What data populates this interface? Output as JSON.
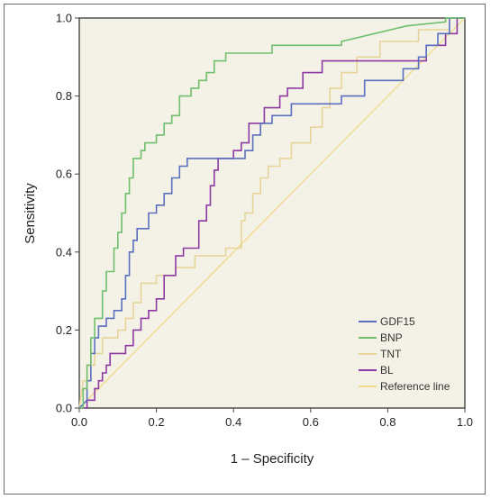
{
  "chart_data": {
    "type": "line",
    "title": "",
    "xlabel": "1 – Specificity",
    "ylabel": "Sensitivity",
    "xlim": [
      0,
      1
    ],
    "ylim": [
      0,
      1
    ],
    "xticks": [
      "0.0",
      "0.2",
      "0.4",
      "0.6",
      "0.8",
      "1.0"
    ],
    "yticks": [
      "0.0",
      "0.2",
      "0.4",
      "0.6",
      "0.8",
      "1.0"
    ],
    "grid": false,
    "legend_position": "lower-right",
    "background": "#f4f2e6",
    "series": [
      {
        "name": "GDF15",
        "color": "#5b6fc0",
        "points": [
          [
            0,
            0
          ],
          [
            0.02,
            0.02
          ],
          [
            0.02,
            0.07
          ],
          [
            0.03,
            0.07
          ],
          [
            0.03,
            0.14
          ],
          [
            0.04,
            0.14
          ],
          [
            0.04,
            0.18
          ],
          [
            0.05,
            0.18
          ],
          [
            0.05,
            0.21
          ],
          [
            0.07,
            0.21
          ],
          [
            0.07,
            0.23
          ],
          [
            0.09,
            0.23
          ],
          [
            0.09,
            0.25
          ],
          [
            0.11,
            0.25
          ],
          [
            0.11,
            0.28
          ],
          [
            0.12,
            0.28
          ],
          [
            0.12,
            0.34
          ],
          [
            0.13,
            0.34
          ],
          [
            0.13,
            0.4
          ],
          [
            0.14,
            0.4
          ],
          [
            0.14,
            0.43
          ],
          [
            0.15,
            0.43
          ],
          [
            0.15,
            0.46
          ],
          [
            0.18,
            0.46
          ],
          [
            0.18,
            0.5
          ],
          [
            0.2,
            0.5
          ],
          [
            0.2,
            0.52
          ],
          [
            0.22,
            0.52
          ],
          [
            0.22,
            0.55
          ],
          [
            0.24,
            0.55
          ],
          [
            0.24,
            0.59
          ],
          [
            0.26,
            0.59
          ],
          [
            0.26,
            0.62
          ],
          [
            0.28,
            0.62
          ],
          [
            0.28,
            0.64
          ],
          [
            0.43,
            0.64
          ],
          [
            0.43,
            0.66
          ],
          [
            0.45,
            0.66
          ],
          [
            0.45,
            0.7
          ],
          [
            0.47,
            0.7
          ],
          [
            0.47,
            0.73
          ],
          [
            0.5,
            0.73
          ],
          [
            0.5,
            0.75
          ],
          [
            0.55,
            0.75
          ],
          [
            0.55,
            0.78
          ],
          [
            0.68,
            0.78
          ],
          [
            0.68,
            0.8
          ],
          [
            0.74,
            0.8
          ],
          [
            0.74,
            0.84
          ],
          [
            0.84,
            0.84
          ],
          [
            0.84,
            0.87
          ],
          [
            0.88,
            0.87
          ],
          [
            0.88,
            0.9
          ],
          [
            0.9,
            0.9
          ],
          [
            0.9,
            0.93
          ],
          [
            0.93,
            0.93
          ],
          [
            0.93,
            0.96
          ],
          [
            0.96,
            0.96
          ],
          [
            0.96,
            1.0
          ],
          [
            1.0,
            1.0
          ]
        ]
      },
      {
        "name": "BNP",
        "color": "#6fbf6f",
        "points": [
          [
            0,
            0
          ],
          [
            0.01,
            0.0
          ],
          [
            0.01,
            0.05
          ],
          [
            0.02,
            0.05
          ],
          [
            0.02,
            0.11
          ],
          [
            0.03,
            0.11
          ],
          [
            0.03,
            0.18
          ],
          [
            0.04,
            0.18
          ],
          [
            0.04,
            0.23
          ],
          [
            0.06,
            0.23
          ],
          [
            0.06,
            0.3
          ],
          [
            0.07,
            0.3
          ],
          [
            0.07,
            0.35
          ],
          [
            0.09,
            0.35
          ],
          [
            0.09,
            0.41
          ],
          [
            0.1,
            0.41
          ],
          [
            0.1,
            0.45
          ],
          [
            0.11,
            0.45
          ],
          [
            0.11,
            0.5
          ],
          [
            0.12,
            0.5
          ],
          [
            0.12,
            0.55
          ],
          [
            0.13,
            0.55
          ],
          [
            0.13,
            0.59
          ],
          [
            0.14,
            0.59
          ],
          [
            0.14,
            0.64
          ],
          [
            0.16,
            0.64
          ],
          [
            0.16,
            0.66
          ],
          [
            0.17,
            0.66
          ],
          [
            0.17,
            0.68
          ],
          [
            0.2,
            0.68
          ],
          [
            0.2,
            0.7
          ],
          [
            0.22,
            0.7
          ],
          [
            0.22,
            0.73
          ],
          [
            0.24,
            0.73
          ],
          [
            0.24,
            0.75
          ],
          [
            0.26,
            0.75
          ],
          [
            0.26,
            0.8
          ],
          [
            0.29,
            0.8
          ],
          [
            0.29,
            0.82
          ],
          [
            0.31,
            0.82
          ],
          [
            0.31,
            0.84
          ],
          [
            0.33,
            0.84
          ],
          [
            0.33,
            0.86
          ],
          [
            0.35,
            0.86
          ],
          [
            0.35,
            0.89
          ],
          [
            0.38,
            0.89
          ],
          [
            0.38,
            0.91
          ],
          [
            0.5,
            0.91
          ],
          [
            0.5,
            0.93
          ],
          [
            0.68,
            0.93
          ],
          [
            0.68,
            0.94
          ],
          [
            0.85,
            0.98
          ],
          [
            0.95,
            0.99
          ],
          [
            0.95,
            1.0
          ],
          [
            1.0,
            1.0
          ]
        ]
      },
      {
        "name": "TNT",
        "color": "#e8d49a",
        "points": [
          [
            0,
            0
          ],
          [
            0.01,
            0.07
          ],
          [
            0.02,
            0.07
          ],
          [
            0.02,
            0.11
          ],
          [
            0.04,
            0.11
          ],
          [
            0.04,
            0.14
          ],
          [
            0.06,
            0.14
          ],
          [
            0.06,
            0.18
          ],
          [
            0.1,
            0.18
          ],
          [
            0.1,
            0.2
          ],
          [
            0.12,
            0.2
          ],
          [
            0.12,
            0.23
          ],
          [
            0.14,
            0.23
          ],
          [
            0.14,
            0.27
          ],
          [
            0.16,
            0.27
          ],
          [
            0.16,
            0.32
          ],
          [
            0.2,
            0.32
          ],
          [
            0.2,
            0.34
          ],
          [
            0.25,
            0.34
          ],
          [
            0.25,
            0.36
          ],
          [
            0.3,
            0.36
          ],
          [
            0.3,
            0.39
          ],
          [
            0.38,
            0.39
          ],
          [
            0.38,
            0.41
          ],
          [
            0.42,
            0.41
          ],
          [
            0.42,
            0.48
          ],
          [
            0.43,
            0.48
          ],
          [
            0.43,
            0.5
          ],
          [
            0.45,
            0.5
          ],
          [
            0.45,
            0.55
          ],
          [
            0.47,
            0.55
          ],
          [
            0.47,
            0.59
          ],
          [
            0.49,
            0.59
          ],
          [
            0.49,
            0.62
          ],
          [
            0.52,
            0.62
          ],
          [
            0.52,
            0.64
          ],
          [
            0.55,
            0.64
          ],
          [
            0.55,
            0.68
          ],
          [
            0.6,
            0.68
          ],
          [
            0.6,
            0.72
          ],
          [
            0.63,
            0.72
          ],
          [
            0.63,
            0.77
          ],
          [
            0.65,
            0.77
          ],
          [
            0.65,
            0.82
          ],
          [
            0.68,
            0.82
          ],
          [
            0.68,
            0.86
          ],
          [
            0.72,
            0.86
          ],
          [
            0.72,
            0.9
          ],
          [
            0.78,
            0.9
          ],
          [
            0.78,
            0.94
          ],
          [
            0.88,
            0.94
          ],
          [
            0.88,
            0.97
          ],
          [
            0.96,
            0.97
          ],
          [
            0.96,
            1.0
          ],
          [
            1.0,
            1.0
          ]
        ]
      },
      {
        "name": "BL",
        "color": "#8e3aa3",
        "points": [
          [
            0,
            0
          ],
          [
            0.02,
            0.0
          ],
          [
            0.02,
            0.02
          ],
          [
            0.04,
            0.02
          ],
          [
            0.04,
            0.05
          ],
          [
            0.05,
            0.05
          ],
          [
            0.05,
            0.07
          ],
          [
            0.06,
            0.07
          ],
          [
            0.06,
            0.09
          ],
          [
            0.07,
            0.09
          ],
          [
            0.07,
            0.11
          ],
          [
            0.08,
            0.11
          ],
          [
            0.08,
            0.14
          ],
          [
            0.12,
            0.14
          ],
          [
            0.12,
            0.16
          ],
          [
            0.14,
            0.16
          ],
          [
            0.14,
            0.2
          ],
          [
            0.16,
            0.2
          ],
          [
            0.16,
            0.23
          ],
          [
            0.18,
            0.23
          ],
          [
            0.18,
            0.25
          ],
          [
            0.2,
            0.25
          ],
          [
            0.2,
            0.28
          ],
          [
            0.22,
            0.28
          ],
          [
            0.22,
            0.34
          ],
          [
            0.25,
            0.34
          ],
          [
            0.25,
            0.39
          ],
          [
            0.27,
            0.39
          ],
          [
            0.27,
            0.41
          ],
          [
            0.31,
            0.41
          ],
          [
            0.31,
            0.48
          ],
          [
            0.33,
            0.48
          ],
          [
            0.33,
            0.52
          ],
          [
            0.34,
            0.52
          ],
          [
            0.34,
            0.57
          ],
          [
            0.35,
            0.57
          ],
          [
            0.35,
            0.61
          ],
          [
            0.36,
            0.61
          ],
          [
            0.36,
            0.64
          ],
          [
            0.4,
            0.64
          ],
          [
            0.4,
            0.66
          ],
          [
            0.42,
            0.66
          ],
          [
            0.42,
            0.68
          ],
          [
            0.44,
            0.68
          ],
          [
            0.44,
            0.73
          ],
          [
            0.48,
            0.73
          ],
          [
            0.48,
            0.77
          ],
          [
            0.52,
            0.77
          ],
          [
            0.52,
            0.8
          ],
          [
            0.54,
            0.8
          ],
          [
            0.54,
            0.82
          ],
          [
            0.58,
            0.82
          ],
          [
            0.58,
            0.86
          ],
          [
            0.63,
            0.86
          ],
          [
            0.63,
            0.89
          ],
          [
            0.9,
            0.89
          ],
          [
            0.9,
            0.93
          ],
          [
            0.95,
            0.93
          ],
          [
            0.95,
            0.96
          ],
          [
            0.98,
            0.96
          ],
          [
            0.98,
            1.0
          ],
          [
            1.0,
            1.0
          ]
        ]
      },
      {
        "name": "Reference line",
        "color": "#f0da8c",
        "points": [
          [
            0,
            0
          ],
          [
            1,
            1
          ]
        ]
      }
    ]
  }
}
